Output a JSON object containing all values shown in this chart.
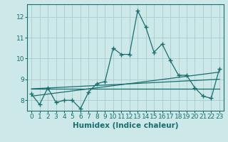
{
  "xlabel": "Humidex (Indice chaleur)",
  "background_color": "#cce8e8",
  "grid_color": "#aacccc",
  "line_color": "#1a6e6e",
  "xlim": [
    -0.5,
    23.5
  ],
  "ylim": [
    7.5,
    12.6
  ],
  "yticks": [
    8,
    9,
    10,
    11,
    12
  ],
  "xticks": [
    0,
    1,
    2,
    3,
    4,
    5,
    6,
    7,
    8,
    9,
    10,
    11,
    12,
    13,
    14,
    15,
    16,
    17,
    18,
    19,
    20,
    21,
    22,
    23
  ],
  "main_series": [
    8.3,
    7.8,
    8.6,
    7.9,
    8.0,
    8.0,
    7.6,
    8.4,
    8.8,
    8.9,
    10.5,
    10.2,
    10.2,
    12.3,
    11.5,
    10.3,
    10.7,
    9.9,
    9.2,
    9.2,
    8.6,
    8.2,
    8.1,
    9.5
  ],
  "line1": [
    8.55,
    8.57,
    8.59,
    8.61,
    8.63,
    8.65,
    8.67,
    8.69,
    8.71,
    8.73,
    8.75,
    8.77,
    8.79,
    8.81,
    8.83,
    8.85,
    8.87,
    8.89,
    8.91,
    8.93,
    8.95,
    8.97,
    8.99,
    9.01
  ],
  "line2": [
    8.55,
    8.55,
    8.55,
    8.55,
    8.55,
    8.55,
    8.55,
    8.55,
    8.55,
    8.55,
    8.55,
    8.55,
    8.55,
    8.55,
    8.55,
    8.55,
    8.55,
    8.55,
    8.55,
    8.55,
    8.55,
    8.55,
    8.55,
    8.55
  ],
  "line3": [
    8.2,
    8.25,
    8.3,
    8.35,
    8.4,
    8.45,
    8.5,
    8.55,
    8.6,
    8.65,
    8.7,
    8.75,
    8.8,
    8.85,
    8.9,
    8.95,
    9.0,
    9.05,
    9.1,
    9.15,
    9.2,
    9.25,
    9.3,
    9.35
  ],
  "marker": "+",
  "markersize": 4,
  "markeredgewidth": 1.0,
  "linewidth": 0.9,
  "tick_labelsize": 6.5,
  "xlabel_fontsize": 7.5
}
